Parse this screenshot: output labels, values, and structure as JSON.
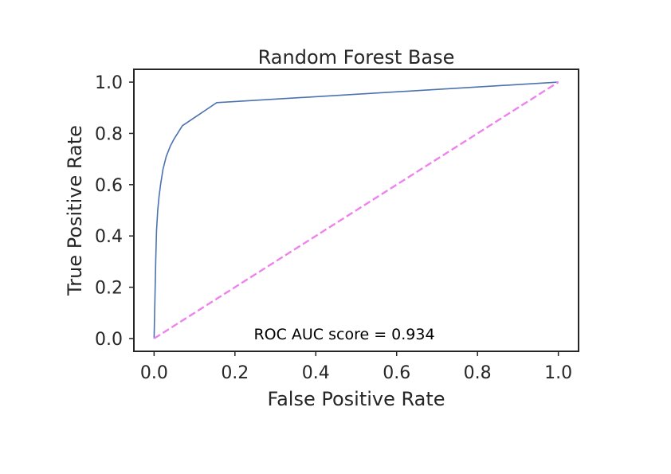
{
  "chart_data": {
    "type": "line",
    "title": "Random Forest Base",
    "xlabel": "False Positive Rate",
    "ylabel": "True Positive Rate",
    "xlim": [
      -0.05,
      1.05
    ],
    "ylim": [
      -0.05,
      1.05
    ],
    "x_ticks": [
      0.0,
      0.2,
      0.4,
      0.6,
      0.8,
      1.0
    ],
    "x_tick_labels": [
      "0.0",
      "0.2",
      "0.4",
      "0.6",
      "0.8",
      "1.0"
    ],
    "y_ticks": [
      0.0,
      0.2,
      0.4,
      0.6,
      0.8,
      1.0
    ],
    "y_tick_labels": [
      "0.0",
      "0.2",
      "0.4",
      "0.6",
      "0.8",
      "1.0"
    ],
    "grid": false,
    "annotation": "ROC AUC score = 0.934",
    "series": [
      {
        "color": "#4c72b0",
        "style": "solid",
        "x": [
          0.0,
          0.002,
          0.004,
          0.006,
          0.009,
          0.012,
          0.016,
          0.022,
          0.03,
          0.04,
          0.05,
          0.07,
          0.155,
          1.0
        ],
        "y": [
          0.0,
          0.15,
          0.3,
          0.42,
          0.5,
          0.55,
          0.6,
          0.66,
          0.71,
          0.75,
          0.78,
          0.83,
          0.92,
          1.0
        ]
      },
      {
        "color": "#ee82ee",
        "style": "dashed",
        "x": [
          0.0,
          1.0
        ],
        "y": [
          0.0,
          1.0
        ]
      }
    ]
  }
}
